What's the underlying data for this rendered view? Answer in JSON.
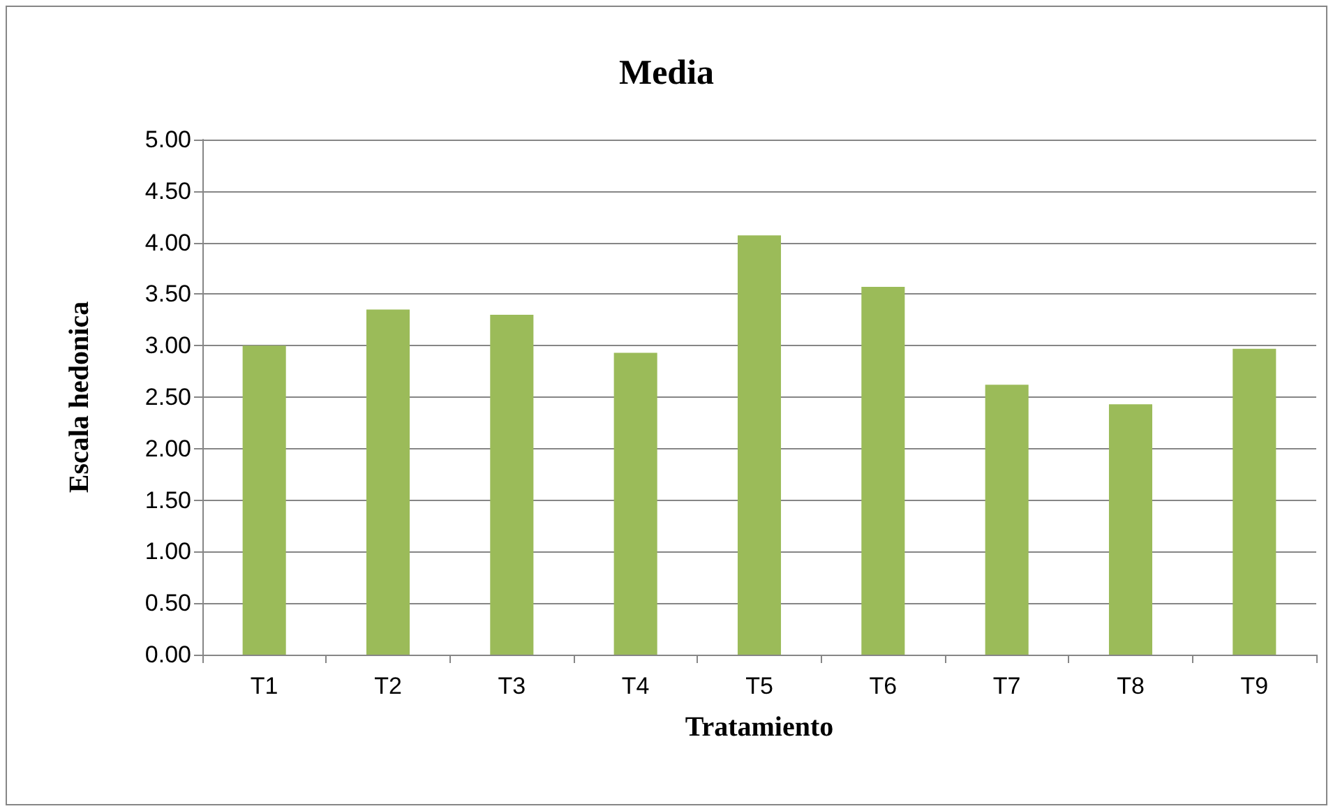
{
  "chart_data": {
    "type": "bar",
    "title": "Media",
    "xlabel": "Tratamiento",
    "ylabel": "Escala hedonica",
    "categories": [
      "T1",
      "T2",
      "T3",
      "T4",
      "T5",
      "T6",
      "T7",
      "T8",
      "T9"
    ],
    "values": [
      3.0,
      3.35,
      3.3,
      2.93,
      4.07,
      3.57,
      2.62,
      2.43,
      2.97
    ],
    "color": "#9bbb59",
    "ylim": [
      0,
      5
    ],
    "yticks": [
      {
        "value": 0,
        "label": "0.00"
      },
      {
        "value": 0.5,
        "label": "0.50"
      },
      {
        "value": 1,
        "label": "1.00"
      },
      {
        "value": 1.5,
        "label": "1.50"
      },
      {
        "value": 2,
        "label": "2.00"
      },
      {
        "value": 2.5,
        "label": "2.50"
      },
      {
        "value": 3,
        "label": "3.00"
      },
      {
        "value": 3.5,
        "label": "3.50"
      },
      {
        "value": 4,
        "label": "4.00"
      },
      {
        "value": 4.5,
        "label": "4.50"
      },
      {
        "value": 5,
        "label": "5.00"
      }
    ],
    "grid": "y"
  }
}
